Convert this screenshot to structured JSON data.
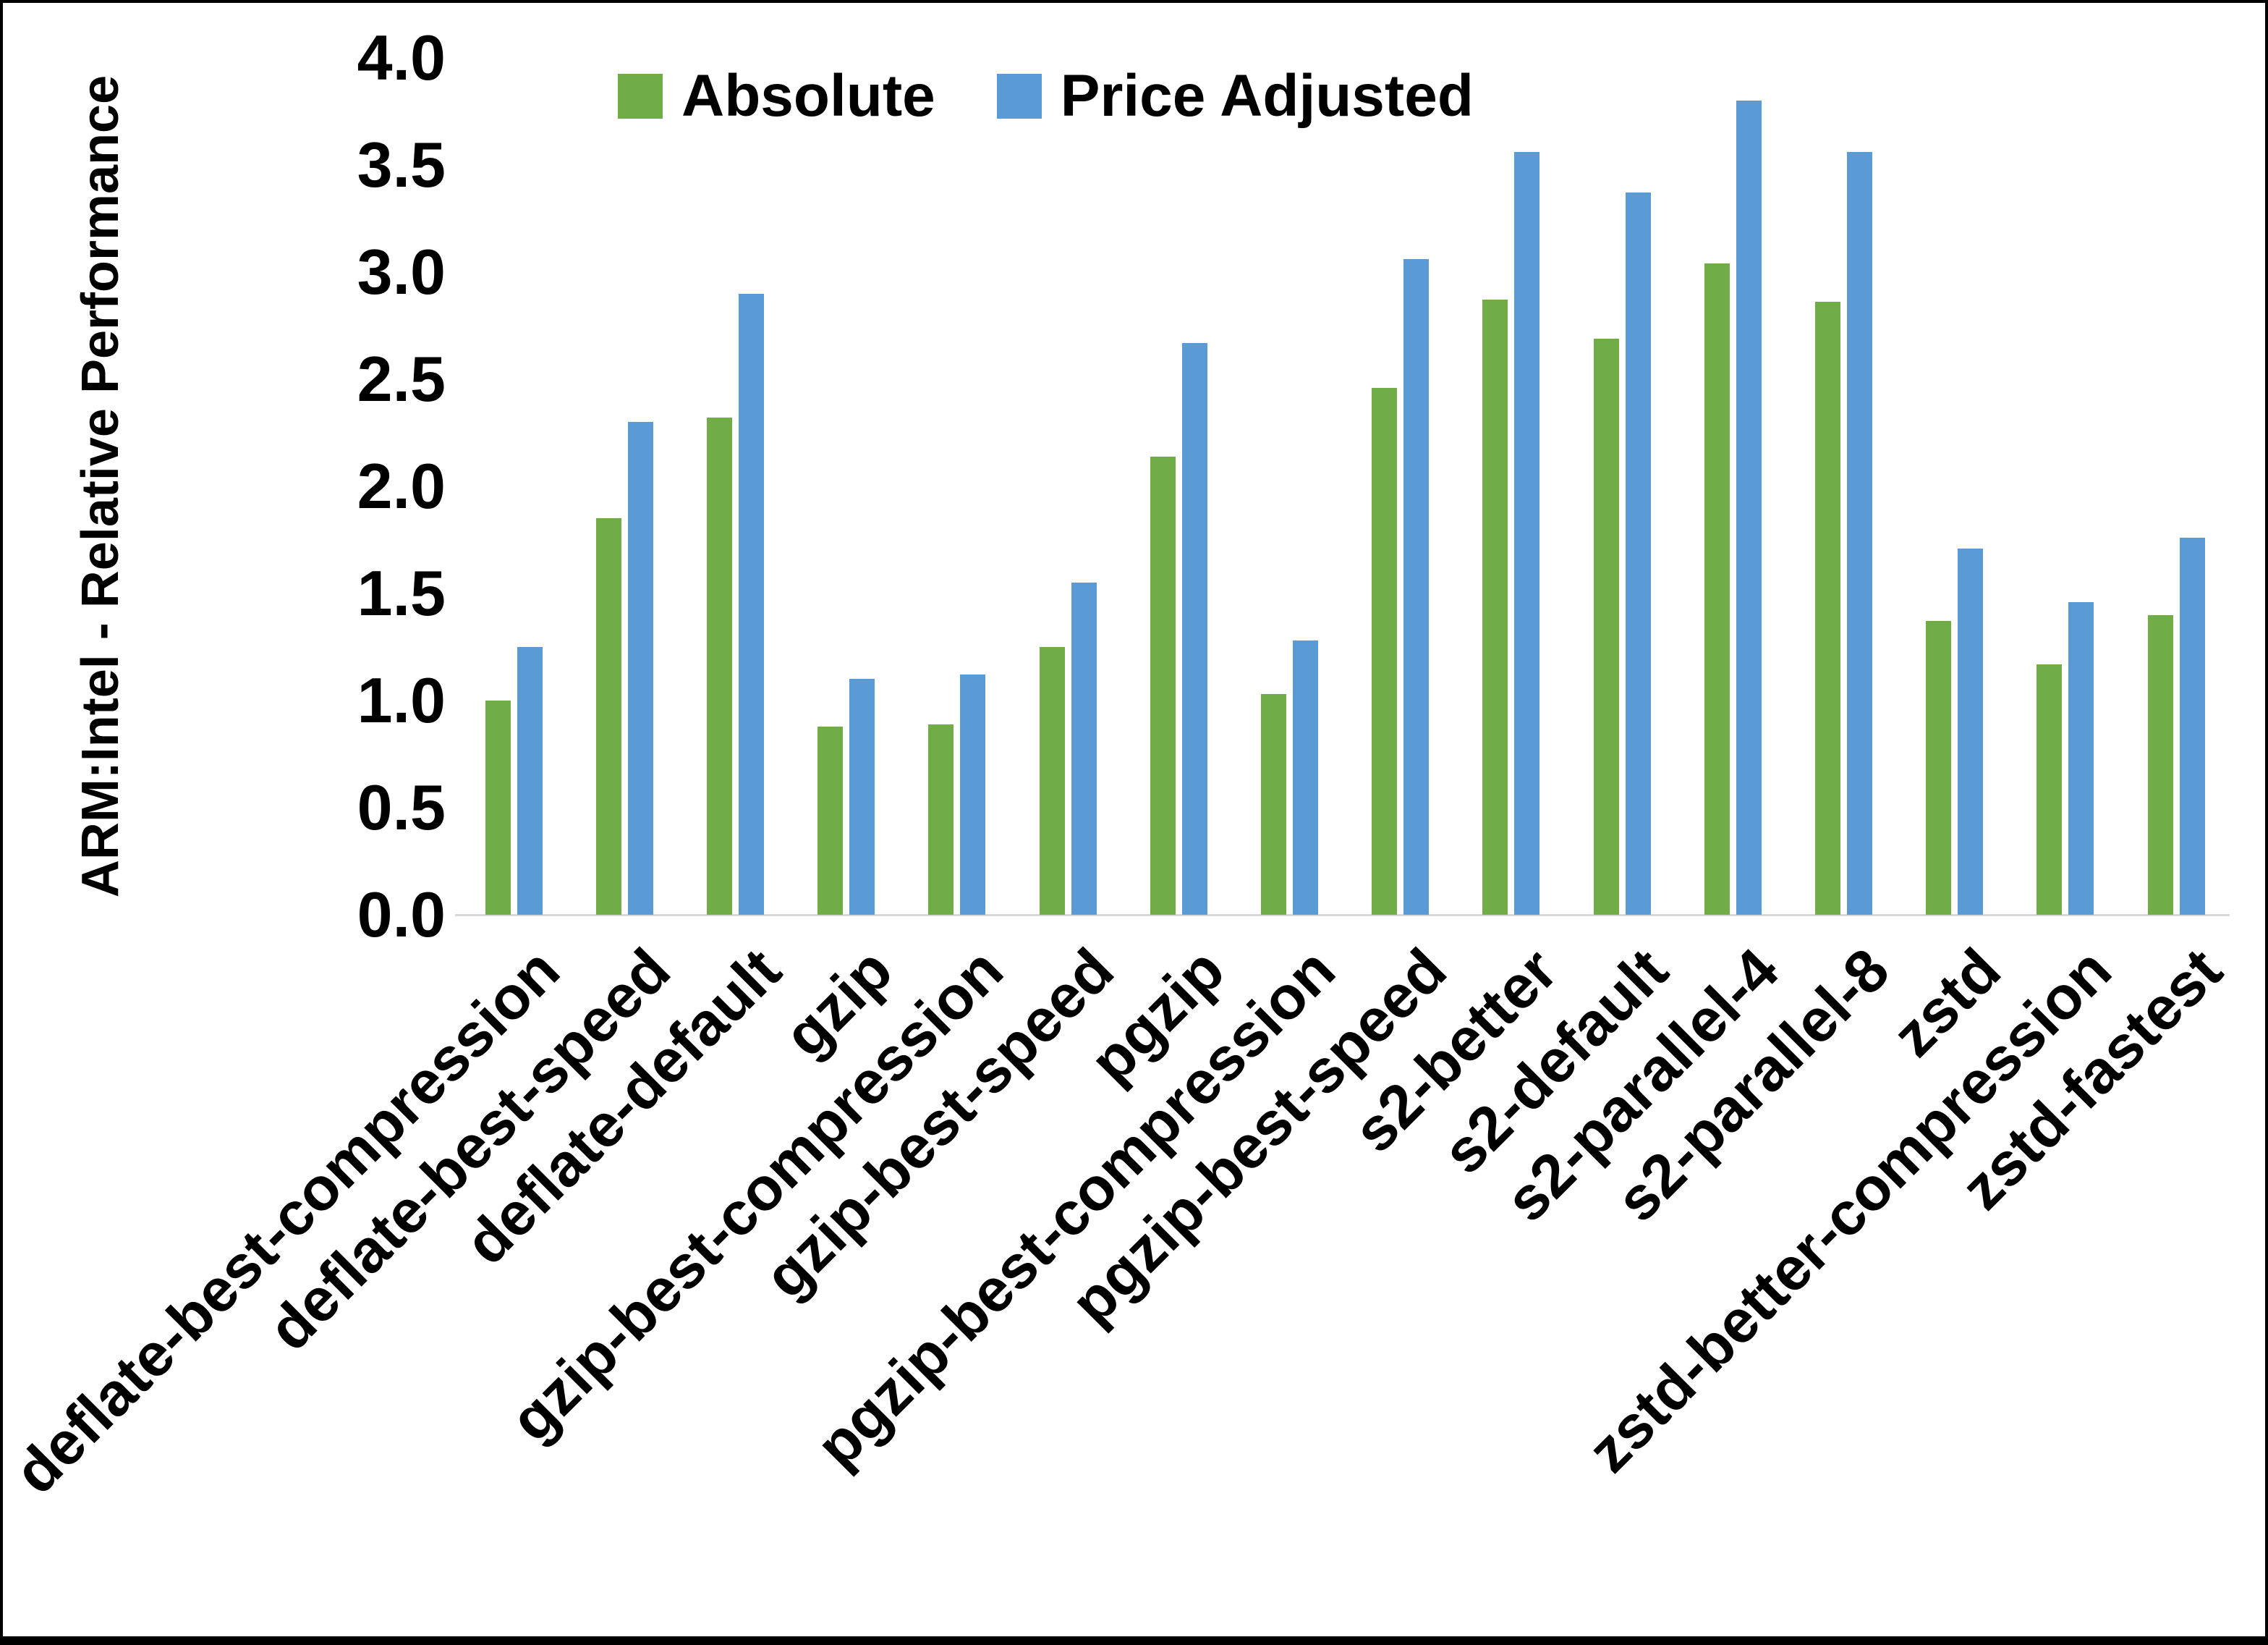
{
  "chart_data": {
    "type": "bar",
    "title": "",
    "ylabel": "ARM:Intel - Relative Performance",
    "xlabel": "",
    "ylim": [
      0.0,
      4.0
    ],
    "ytick_step": 0.5,
    "grid": false,
    "legend_position": "top-center",
    "categories": [
      "deflate-best-compression",
      "deflate-best-speed",
      "deflate-default",
      "gzip",
      "gzip-best-compression",
      "gzip-best-speed",
      "pgzip",
      "pgzip-best-compression",
      "pgzip-best-speed",
      "s2-better",
      "s2-default",
      "s2-parallel-4",
      "s2-parallel-8",
      "zstd",
      "zstd-better-compression",
      "zstd-fastest"
    ],
    "series": [
      {
        "name": "Absolute",
        "color": "#70AD47",
        "values": [
          1.0,
          1.85,
          2.32,
          0.88,
          0.89,
          1.25,
          2.14,
          1.03,
          2.46,
          2.87,
          2.69,
          3.04,
          2.86,
          1.37,
          1.17,
          1.4
        ]
      },
      {
        "name": "Price Adjusted",
        "color": "#5B9BD5",
        "values": [
          1.25,
          2.3,
          2.9,
          1.1,
          1.12,
          1.55,
          2.67,
          1.28,
          3.06,
          3.56,
          3.37,
          3.8,
          3.56,
          1.71,
          1.46,
          1.76
        ]
      }
    ]
  },
  "colors": {
    "axis_line": "#D9D9D9",
    "text": "#000000",
    "border": "#000000"
  }
}
